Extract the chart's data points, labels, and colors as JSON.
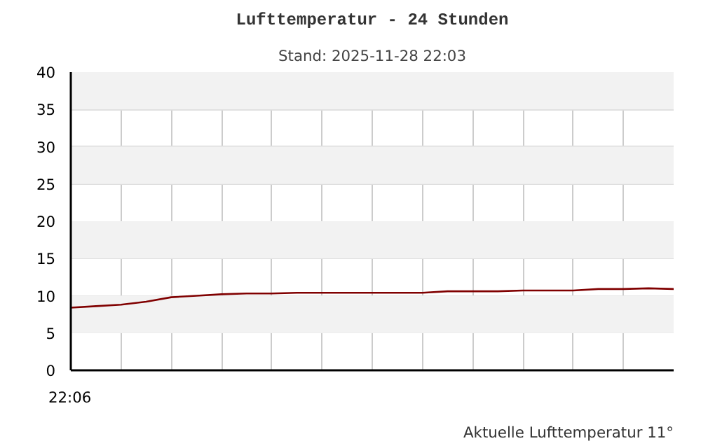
{
  "chart_data": {
    "type": "line",
    "title": "Lufttemperatur - 24 Stunden",
    "subtitle": "Stand: 2025-11-28 22:03",
    "annotations": [
      "22:06",
      "Aktuelle Lufttemperatur 11°"
    ],
    "categories": [
      null,
      null,
      null,
      null,
      null,
      null,
      null,
      null,
      null,
      null,
      null,
      null,
      null,
      null,
      null,
      null,
      null,
      null,
      null,
      null,
      null,
      null,
      null,
      null,
      null
    ],
    "series": [
      {
        "color": "#800000",
        "values": [
          8.4,
          8.6,
          8.8,
          9.2,
          9.8,
          10.0,
          10.2,
          10.3,
          10.3,
          10.4,
          10.4,
          10.4,
          10.4,
          10.4,
          10.4,
          10.6,
          10.6,
          10.6,
          10.7,
          10.7,
          10.7,
          10.9,
          10.9,
          11.0,
          10.9
        ]
      }
    ],
    "ylim": [
      0,
      40
    ],
    "yticks": [
      0,
      5,
      10,
      15,
      20,
      25,
      30,
      35,
      40
    ],
    "bands": [
      {
        "axis": "y",
        "from": 5,
        "to": 10,
        "color": "#f2f2f2"
      },
      {
        "axis": "y",
        "from": 15,
        "to": 20,
        "color": "#f2f2f2"
      },
      {
        "axis": "y",
        "from": 25,
        "to": 30,
        "color": "#f2f2f2"
      },
      {
        "axis": "y",
        "from": 35,
        "to": 40,
        "color": "#f2f2f2"
      }
    ],
    "grid": true,
    "marker": "none",
    "line_style": "solid"
  }
}
